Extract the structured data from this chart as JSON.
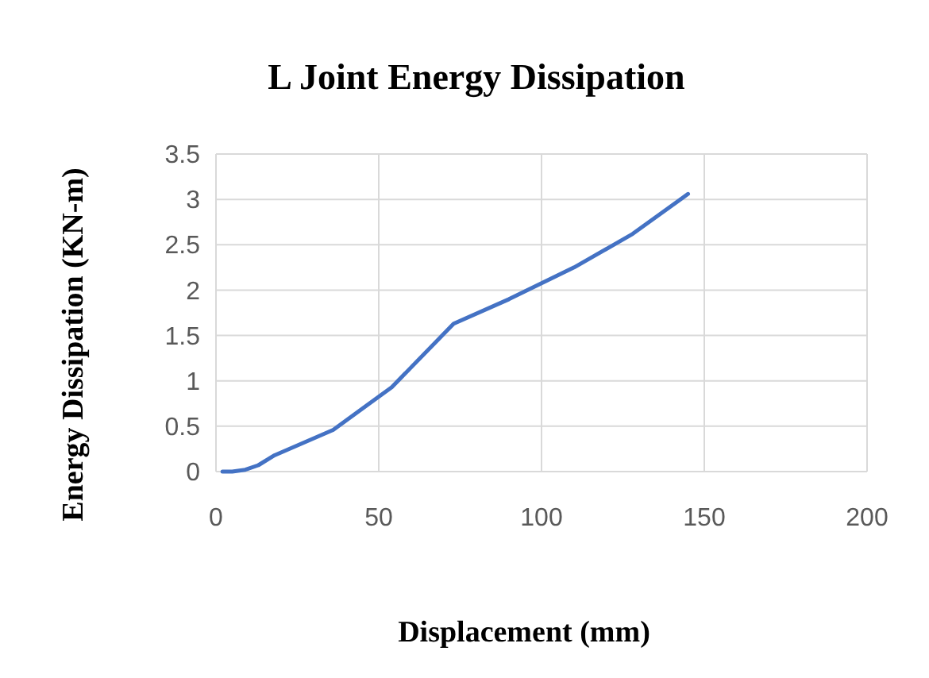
{
  "chart_data": {
    "type": "line",
    "title": "L Joint Energy Dissipation",
    "xlabel": "Displacement (mm)",
    "ylabel": "Energy Dissipation (KN-m)",
    "x": [
      2,
      5,
      9,
      13,
      18,
      36,
      54,
      73,
      90,
      110,
      128,
      145
    ],
    "series": [
      {
        "color": "#4472c4",
        "values": [
          0,
          0,
          0.02,
          0.07,
          0.18,
          0.46,
          0.93,
          1.63,
          1.9,
          2.25,
          2.62,
          3.06
        ]
      }
    ],
    "xlim": [
      0,
      200
    ],
    "xticks": [
      0,
      50,
      100,
      150,
      200
    ],
    "ylim": [
      0,
      3.5
    ],
    "yticks": [
      0,
      0.5,
      1,
      1.5,
      2,
      2.5,
      3,
      3.5
    ],
    "grid": true,
    "marker": "none",
    "line_style": "solid"
  }
}
